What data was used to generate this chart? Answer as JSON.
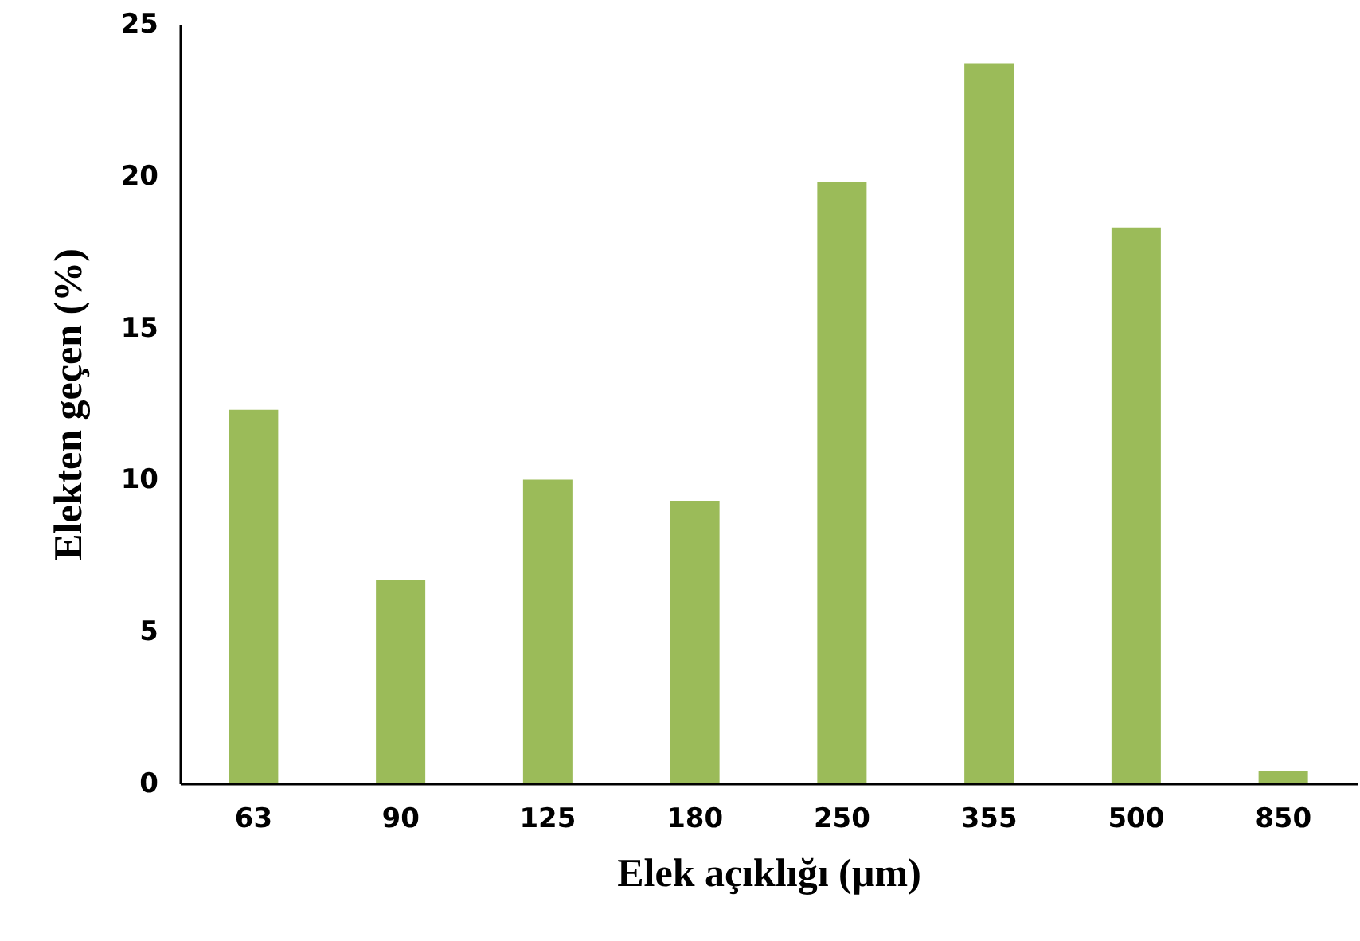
{
  "chart_data": {
    "type": "bar",
    "xlabel": "Elek açıklığı  (µm)",
    "ylabel": "Elekten geçen (%)",
    "categories": [
      "63",
      "90",
      "125",
      "180",
      "250",
      "355",
      "500",
      "850"
    ],
    "values": [
      12.3,
      6.7,
      10.0,
      9.3,
      19.8,
      23.7,
      18.3,
      0.4
    ],
    "color": "#9bbb59",
    "ylim": [
      0,
      25
    ],
    "yticks": [
      0,
      5,
      10,
      15,
      20,
      25
    ],
    "grid": false
  }
}
